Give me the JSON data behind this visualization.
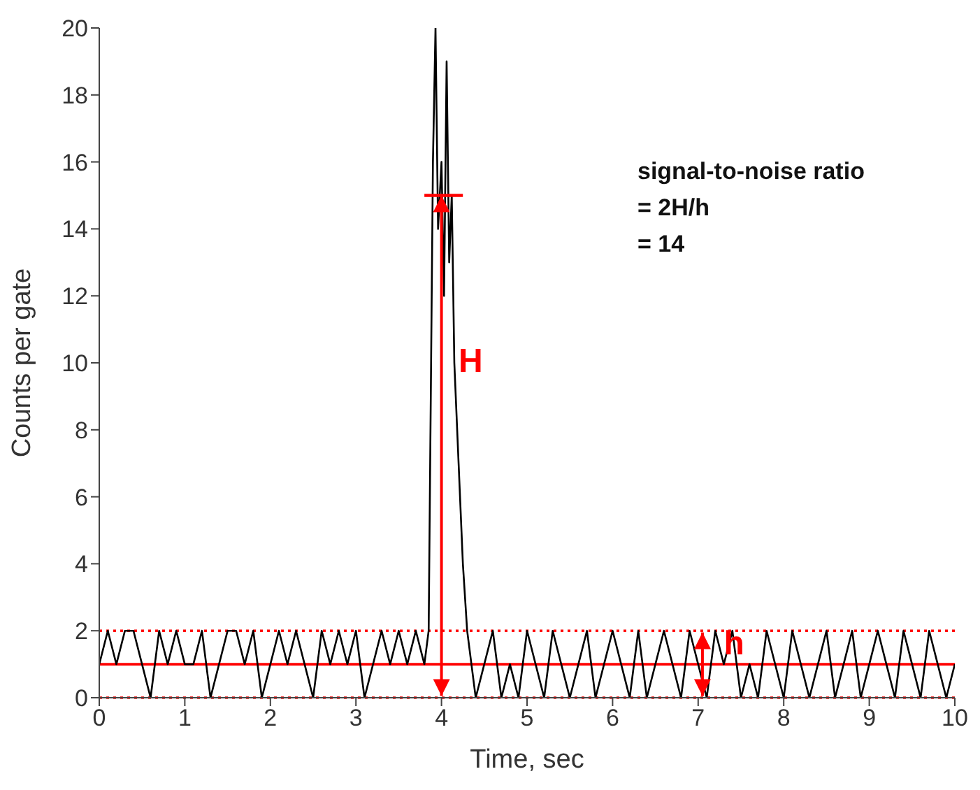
{
  "chart_data": {
    "type": "line",
    "xlabel": "Time, sec",
    "ylabel": "Counts per gate",
    "xlim": [
      0,
      10
    ],
    "xticks": [
      0,
      1,
      2,
      3,
      4,
      5,
      6,
      7,
      8,
      9,
      10
    ],
    "ylim": [
      0,
      20
    ],
    "yticks": [
      0,
      2,
      4,
      6,
      8,
      10,
      12,
      14,
      16,
      18,
      20
    ],
    "grid": false,
    "marker": "none",
    "line_style": "solid",
    "series": [
      {
        "color": "#000000",
        "x": [
          0,
          0.1,
          0.2,
          0.3,
          0.4,
          0.5,
          0.6,
          0.7,
          0.8,
          0.9,
          1,
          1.1,
          1.2,
          1.3,
          1.4,
          1.5,
          1.6,
          1.7,
          1.8,
          1.9,
          2,
          2.1,
          2.2,
          2.3,
          2.4,
          2.5,
          2.6,
          2.7,
          2.8,
          2.9,
          3,
          3.1,
          3.2,
          3.3,
          3.4,
          3.5,
          3.6,
          3.7,
          3.8,
          3.85,
          3.9,
          3.93,
          3.96,
          4,
          4.03,
          4.06,
          4.09,
          4.12,
          4.15,
          4.2,
          4.25,
          4.3,
          4.35,
          4.4,
          4.5,
          4.6,
          4.7,
          4.8,
          4.9,
          5,
          5.1,
          5.2,
          5.3,
          5.4,
          5.5,
          5.6,
          5.7,
          5.8,
          5.9,
          6,
          6.1,
          6.2,
          6.3,
          6.4,
          6.5,
          6.6,
          6.7,
          6.8,
          6.9,
          7,
          7.1,
          7.2,
          7.3,
          7.4,
          7.5,
          7.6,
          7.7,
          7.8,
          7.9,
          8,
          8.1,
          8.2,
          8.3,
          8.4,
          8.5,
          8.6,
          8.7,
          8.8,
          8.9,
          9,
          9.1,
          9.2,
          9.3,
          9.4,
          9.5,
          9.6,
          9.7,
          9.8,
          9.9,
          10
        ],
        "values": [
          1,
          2,
          1,
          2,
          2,
          1,
          0,
          2,
          1,
          2,
          1,
          1,
          2,
          0,
          1,
          2,
          2,
          1,
          2,
          0,
          1,
          2,
          1,
          2,
          1,
          0,
          2,
          1,
          2,
          1,
          2,
          0,
          1,
          2,
          1,
          2,
          1,
          2,
          1,
          2,
          16,
          20,
          14,
          16,
          12,
          19,
          13,
          15,
          10,
          7,
          4,
          2,
          1,
          0,
          1,
          2,
          0,
          1,
          0,
          2,
          1,
          0,
          2,
          1,
          0,
          1,
          2,
          0,
          1,
          2,
          1,
          0,
          2,
          0,
          1,
          2,
          1,
          0,
          2,
          1,
          0,
          2,
          1,
          2,
          0,
          1,
          0,
          2,
          1,
          0,
          2,
          1,
          0,
          1,
          2,
          0,
          1,
          2,
          0,
          1,
          2,
          1,
          0,
          2,
          1,
          0,
          2,
          1,
          0,
          1
        ]
      },
      {
        "color": "#ff0000",
        "x": [
          3.8,
          4.25
        ],
        "values": [
          15,
          15
        ]
      }
    ],
    "ref_lines": [
      {
        "axis": "y",
        "value": 1,
        "color": "#ff0000",
        "line_style": "solid"
      },
      {
        "axis": "y",
        "value": 2,
        "color": "#ff0000",
        "line_style": "dotted"
      },
      {
        "axis": "y",
        "value": 0,
        "color": "#ff0000",
        "line_style": "dotted"
      }
    ],
    "annotations": [
      {
        "text": "H",
        "x": 4.2,
        "y": 10
      },
      {
        "text": "h",
        "x": 7.3,
        "y": 1.55
      },
      "signal-to-noise ratio",
      "= 2H/h",
      "= 14"
    ]
  }
}
